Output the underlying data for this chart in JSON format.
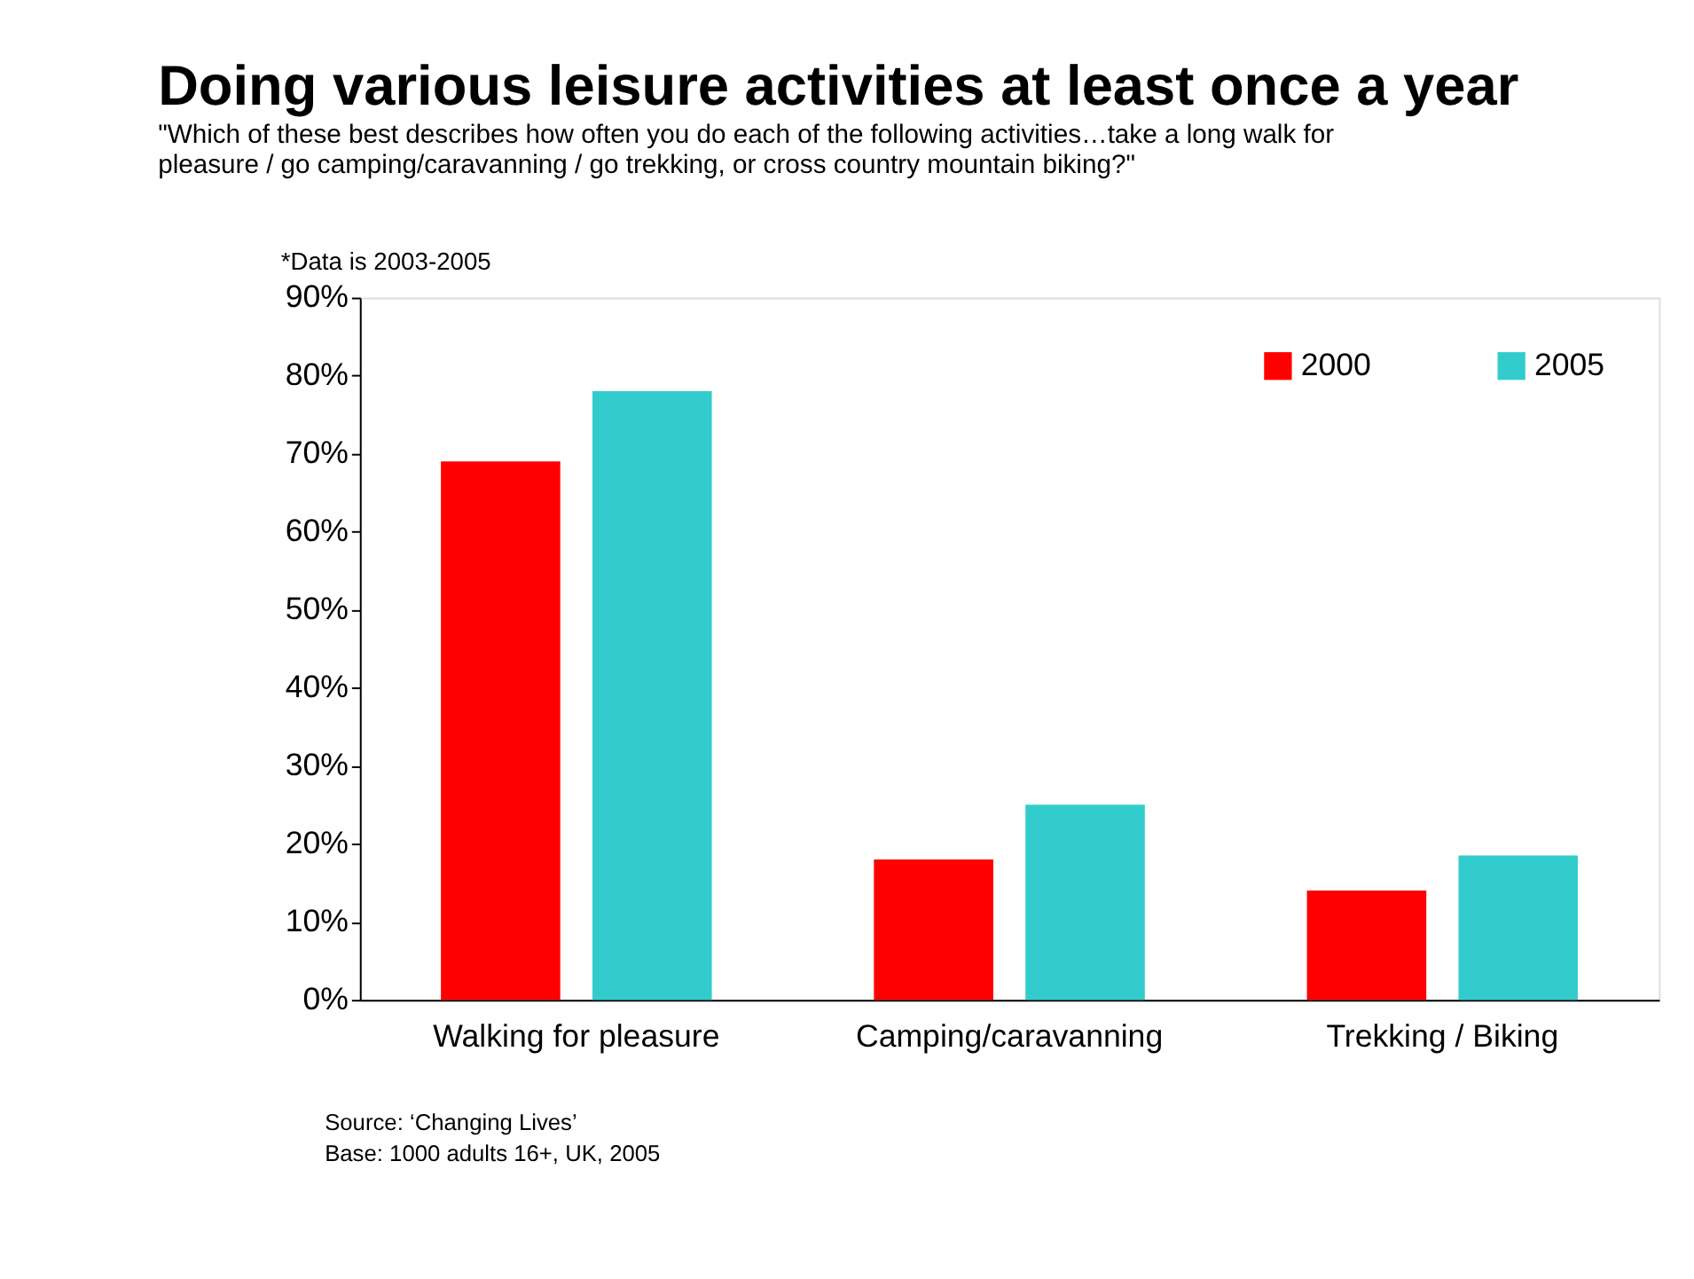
{
  "chart_data": {
    "type": "bar",
    "title": "Doing various leisure activities at least once a year",
    "subtitle": "\"Which of these best describes how often you do each of the following activities…take a long walk for pleasure / go camping/caravanning / go trekking, or cross country mountain biking?\"",
    "categories": [
      "Walking for pleasure",
      "Camping/caravanning",
      "Trekking / Biking"
    ],
    "series": [
      {
        "name": "2000",
        "color": "#ff0000",
        "values": [
          69,
          18,
          14
        ]
      },
      {
        "name": "2005",
        "color": "#33cccc",
        "values": [
          78,
          25,
          18.5
        ]
      }
    ],
    "ylim": [
      0,
      90
    ],
    "yticks": [
      {
        "value": 0,
        "label": "0%"
      },
      {
        "value": 10,
        "label": "10%"
      },
      {
        "value": 20,
        "label": "20%"
      },
      {
        "value": 30,
        "label": "30%"
      },
      {
        "value": 40,
        "label": "40%"
      },
      {
        "value": 50,
        "label": "50%"
      },
      {
        "value": 60,
        "label": "60%"
      },
      {
        "value": 70,
        "label": "70%"
      },
      {
        "value": 80,
        "label": "80%"
      },
      {
        "value": 90,
        "label": "90%"
      }
    ],
    "grid": false,
    "legend": "top right",
    "annotations": [
      "*Data is 2003-2005",
      "Source: ‘Changing Lives’",
      "Base: 1000 adults 16+, UK, 2005"
    ]
  }
}
